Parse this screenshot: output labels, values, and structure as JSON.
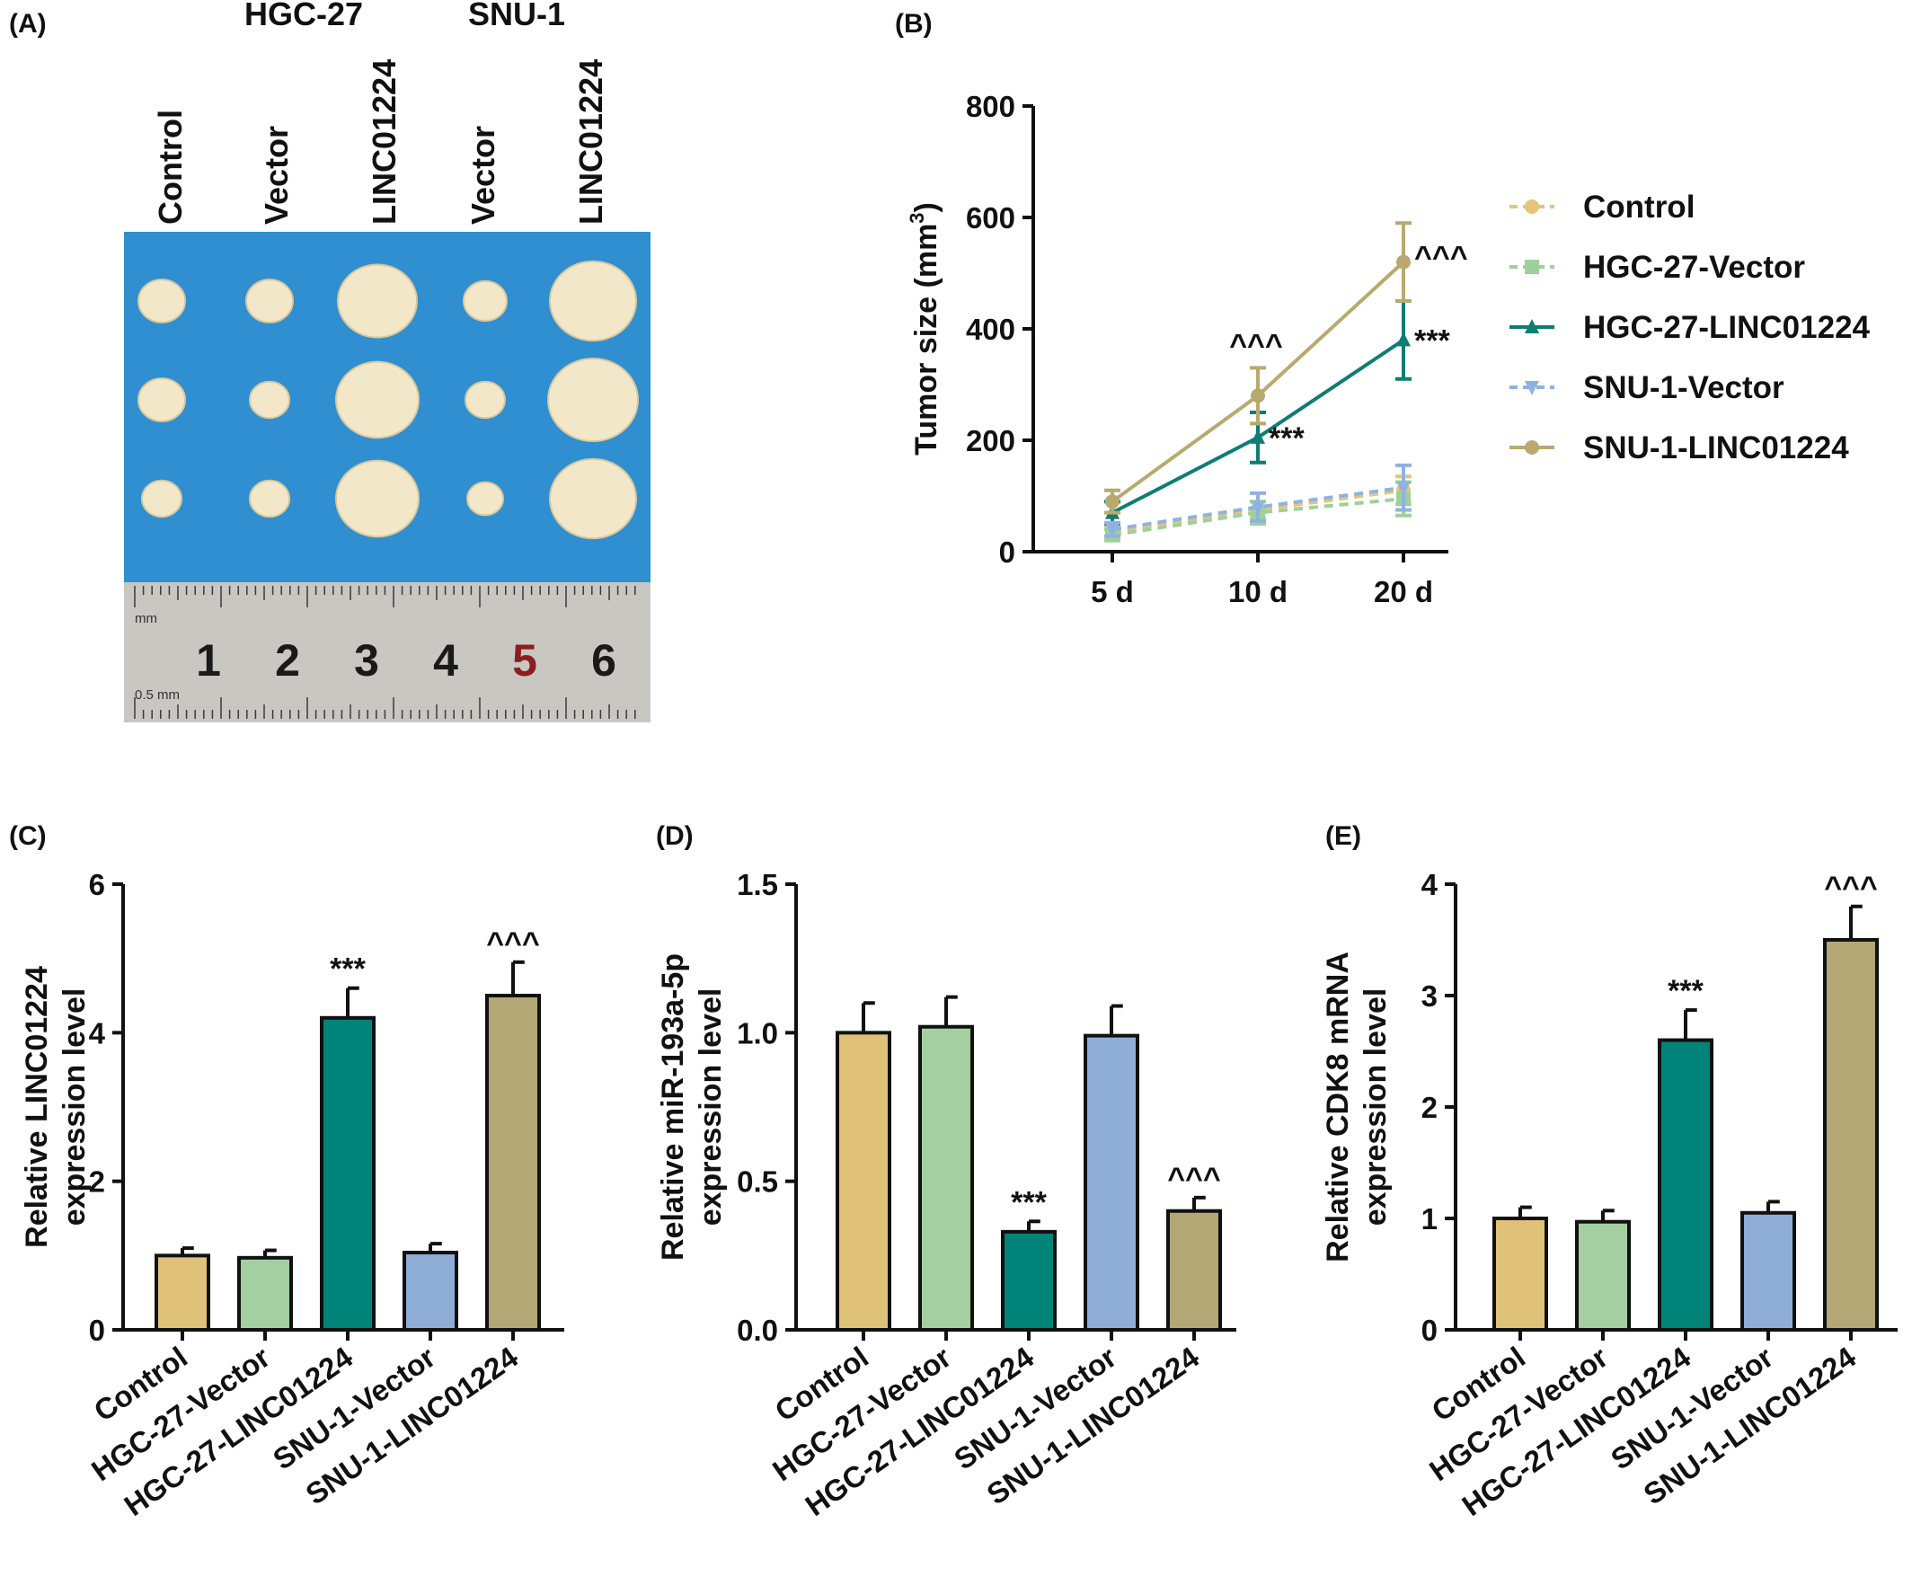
{
  "panel_labels": [
    "(A)",
    "(B)",
    "(C)",
    "(D)",
    "(E)"
  ],
  "photo": {
    "group_labels": [
      "HGC-27",
      "SNU-1"
    ],
    "column_labels": [
      "Control",
      "Vector",
      "LINC01224",
      "Vector",
      "LINC01224"
    ],
    "ruler_numbers": [
      "1",
      "2",
      "3",
      "4",
      "5",
      "6"
    ],
    "ruler_unit_top": "mm",
    "ruler_unit_bottom": "0.5 mm",
    "colors": {
      "background": "#2f8fd0",
      "tumor": "#f2e7c9",
      "ruler": "#c9c7c2"
    }
  },
  "chart_data": [
    {
      "type": "line",
      "panel": "(B)",
      "ylabel": "Tumor size (mm",
      "ylabel_sup": "3",
      "ylabel_close": ")",
      "ylim": [
        0,
        800
      ],
      "yticks": [
        "0",
        "200",
        "400",
        "600",
        "800"
      ],
      "categories": [
        "5 d",
        "10 d",
        "20 d"
      ],
      "series": [
        {
          "name": "Control",
          "values": [
            35,
            75,
            110
          ],
          "errors": [
            10,
            15,
            25
          ],
          "color": "#e4c57a",
          "dashed": true,
          "marker": "circle"
        },
        {
          "name": "HGC-27-Vector",
          "values": [
            30,
            70,
            95
          ],
          "errors": [
            10,
            20,
            30
          ],
          "color": "#9fd09a",
          "dashed": true,
          "marker": "square"
        },
        {
          "name": "HGC-27-LINC01224",
          "values": [
            70,
            205,
            380
          ],
          "errors": [
            20,
            45,
            70
          ],
          "color": "#0e7d72",
          "dashed": false,
          "marker": "triangle"
        },
        {
          "name": "SNU-1-Vector",
          "values": [
            40,
            80,
            115
          ],
          "errors": [
            12,
            25,
            40
          ],
          "color": "#8fb3e0",
          "dashed": true,
          "marker": "triangle-down"
        },
        {
          "name": "SNU-1-LINC01224",
          "values": [
            90,
            280,
            520
          ],
          "errors": [
            20,
            50,
            70
          ],
          "color": "#b8aa6e",
          "dashed": false,
          "marker": "circle"
        }
      ],
      "annotations": [
        {
          "text": "^^^",
          "category": "10 d",
          "series": "SNU-1-LINC01224"
        },
        {
          "text": "***",
          "category": "10 d",
          "series": "HGC-27-LINC01224"
        },
        {
          "text": "^^^",
          "category": "20 d",
          "series": "SNU-1-LINC01224"
        },
        {
          "text": "***",
          "category": "20 d",
          "series": "HGC-27-LINC01224"
        }
      ],
      "legend": "right"
    },
    {
      "type": "bar",
      "panel": "(C)",
      "ylabel_lines": [
        "Relative LINC01224",
        "expression level"
      ],
      "ylim": [
        0,
        6
      ],
      "yticks": [
        "0",
        "2",
        "4",
        "6"
      ],
      "ytick_values": [
        0,
        2,
        4,
        6
      ],
      "categories": [
        "Control",
        "HGC-27-Vector",
        "HGC-27-LINC01224",
        "SNU-1-Vector",
        "SNU-1-LINC01224"
      ],
      "values": [
        1.0,
        0.97,
        4.2,
        1.04,
        4.5
      ],
      "errors": [
        0.1,
        0.1,
        0.4,
        0.12,
        0.45
      ],
      "annotations": [
        "",
        "",
        "***",
        "",
        "^^^"
      ],
      "colors": [
        "#e0c178",
        "#a3cfa1",
        "#008479",
        "#8eaed8",
        "#b3a775"
      ]
    },
    {
      "type": "bar",
      "panel": "(D)",
      "ylabel_lines": [
        "Relative miR-193a-5p",
        "expression level"
      ],
      "ylim": [
        0,
        1.5
      ],
      "yticks": [
        "0.0",
        "0.5",
        "1.0",
        "1.5"
      ],
      "ytick_values": [
        0,
        0.5,
        1.0,
        1.5
      ],
      "categories": [
        "Control",
        "HGC-27-Vector",
        "HGC-27-LINC01224",
        "SNU-1-Vector",
        "SNU-1-LINC01224"
      ],
      "values": [
        1.0,
        1.02,
        0.33,
        0.99,
        0.4
      ],
      "errors": [
        0.1,
        0.1,
        0.035,
        0.1,
        0.045
      ],
      "annotations": [
        "",
        "",
        "***",
        "",
        "^^^"
      ],
      "colors": [
        "#e0c178",
        "#a3cfa1",
        "#008479",
        "#8eaed8",
        "#b3a775"
      ]
    },
    {
      "type": "bar",
      "panel": "(E)",
      "ylabel_lines": [
        "Relative CDK8 mRNA",
        "expression level"
      ],
      "ylim": [
        0,
        4
      ],
      "yticks": [
        "0",
        "1",
        "2",
        "3",
        "4"
      ],
      "ytick_values": [
        0,
        1,
        2,
        3,
        4
      ],
      "categories": [
        "Control",
        "HGC-27-Vector",
        "HGC-27-LINC01224",
        "SNU-1-Vector",
        "SNU-1-LINC01224"
      ],
      "values": [
        1.0,
        0.97,
        2.6,
        1.05,
        3.5
      ],
      "errors": [
        0.1,
        0.1,
        0.27,
        0.1,
        0.3
      ],
      "annotations": [
        "",
        "",
        "***",
        "",
        "^^^"
      ],
      "colors": [
        "#e0c178",
        "#a3cfa1",
        "#008479",
        "#8eaed8",
        "#b3a775"
      ]
    }
  ]
}
